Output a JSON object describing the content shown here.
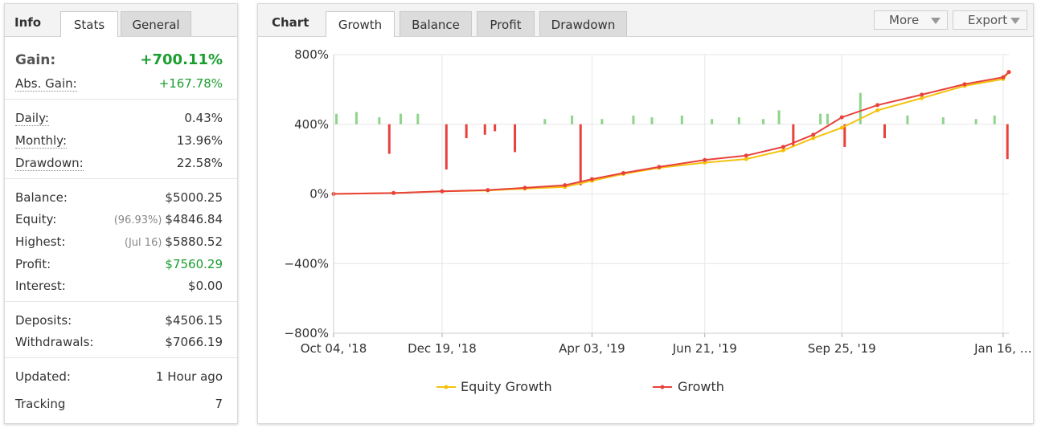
{
  "info": {
    "title": "Info",
    "tabs": [
      {
        "label": "Stats"
      },
      {
        "label": "General"
      }
    ],
    "gain": {
      "label": "Gain:",
      "value": "+700.11%"
    },
    "abs_gain": {
      "label": "Abs. Gain:",
      "value": "+167.78%"
    },
    "daily": {
      "label": "Daily:",
      "value": "0.43%"
    },
    "monthly": {
      "label": "Monthly:",
      "value": "13.96%"
    },
    "drawdown": {
      "label": "Drawdown:",
      "value": "22.58%"
    },
    "balance": {
      "label": "Balance:",
      "value": "$5000.25"
    },
    "equity": {
      "label": "Equity:",
      "note": "(96.93%)",
      "value": "$4846.84"
    },
    "highest": {
      "label": "Highest:",
      "note": "(Jul 16)",
      "value": "$5880.52"
    },
    "profit": {
      "label": "Profit:",
      "value": "$7560.29"
    },
    "interest": {
      "label": "Interest:",
      "value": "$0.00"
    },
    "deposits": {
      "label": "Deposits:",
      "value": "$4506.15"
    },
    "withdrawals": {
      "label": "Withdrawals:",
      "value": "$7066.19"
    },
    "updated": {
      "label": "Updated:",
      "value": "1 Hour ago"
    },
    "tracking": {
      "label": "Tracking",
      "value": "7"
    }
  },
  "chart_panel": {
    "title": "Chart",
    "tabs": [
      {
        "label": "Growth"
      },
      {
        "label": "Balance"
      },
      {
        "label": "Profit"
      },
      {
        "label": "Drawdown"
      }
    ],
    "more_label": "More",
    "export_label": "Export"
  },
  "colors": {
    "growth": "#e8413c",
    "equity": "#f4c20d",
    "positive_bar": "#8fd48a",
    "negative_bar": "#e8413c"
  },
  "chart_data": {
    "type": "line",
    "xlabel": "",
    "ylabel": "",
    "ylim": [
      -800,
      800
    ],
    "y_ticks": [
      800,
      400,
      0,
      -400,
      -800
    ],
    "y_tick_labels": [
      "800%",
      "400%",
      "0%",
      "−400%",
      "−800%"
    ],
    "x_range": [
      "2018-10-04",
      "2020-01-20"
    ],
    "x_ticks": [
      "2018-10-04",
      "2018-12-19",
      "2019-04-03",
      "2019-06-21",
      "2019-09-25",
      "2020-01-16"
    ],
    "x_tick_labels": [
      "Oct 04, '18",
      "Dec 19, '18",
      "Apr 03, '19",
      "Jun 21, '19",
      "Sep 25, '19",
      "Jan 16, …"
    ],
    "grid": true,
    "legend_position": "bottom",
    "series": [
      {
        "name": "Equity Growth",
        "x": [
          "2018-10-04",
          "2018-11-15",
          "2018-12-19",
          "2019-01-20",
          "2019-02-15",
          "2019-03-15",
          "2019-04-03",
          "2019-04-25",
          "2019-05-20",
          "2019-06-21",
          "2019-07-20",
          "2019-08-15",
          "2019-09-05",
          "2019-09-25",
          "2019-10-20",
          "2019-11-20",
          "2019-12-20",
          "2020-01-16",
          "2020-01-20"
        ],
        "values": [
          0,
          5,
          15,
          20,
          30,
          40,
          75,
          115,
          150,
          180,
          200,
          250,
          320,
          380,
          480,
          550,
          620,
          660,
          700
        ]
      },
      {
        "name": "Growth",
        "x": [
          "2018-10-04",
          "2018-11-15",
          "2018-12-19",
          "2019-01-20",
          "2019-02-15",
          "2019-03-15",
          "2019-04-03",
          "2019-04-25",
          "2019-05-20",
          "2019-06-21",
          "2019-07-20",
          "2019-08-15",
          "2019-09-05",
          "2019-09-25",
          "2019-10-20",
          "2019-11-20",
          "2019-12-20",
          "2020-01-16",
          "2020-01-20"
        ],
        "values": [
          0,
          5,
          15,
          22,
          35,
          50,
          85,
          120,
          155,
          195,
          220,
          270,
          340,
          440,
          510,
          570,
          630,
          670,
          700
        ]
      }
    ],
    "daily_bars": {
      "name": "",
      "x": [
        "2018-10-06",
        "2018-10-20",
        "2018-11-05",
        "2018-11-12",
        "2018-11-20",
        "2018-12-02",
        "2018-12-22",
        "2019-01-05",
        "2019-01-18",
        "2019-01-25",
        "2019-02-08",
        "2019-03-01",
        "2019-03-20",
        "2019-03-26",
        "2019-04-10",
        "2019-05-02",
        "2019-05-15",
        "2019-06-05",
        "2019-06-26",
        "2019-07-15",
        "2019-08-01",
        "2019-08-12",
        "2019-08-22",
        "2019-09-10",
        "2019-09-15",
        "2019-09-27",
        "2019-10-08",
        "2019-10-25",
        "2019-11-10",
        "2019-12-05",
        "2019-12-28",
        "2020-01-10",
        "2020-01-19"
      ],
      "values": [
        60,
        70,
        40,
        -170,
        60,
        60,
        -260,
        -80,
        -60,
        -40,
        -160,
        30,
        50,
        -350,
        30,
        50,
        40,
        50,
        30,
        40,
        30,
        80,
        -130,
        60,
        60,
        -130,
        180,
        -80,
        50,
        40,
        30,
        50,
        -200
      ]
    }
  },
  "legend": {
    "equity": "Equity Growth",
    "growth": "Growth"
  }
}
